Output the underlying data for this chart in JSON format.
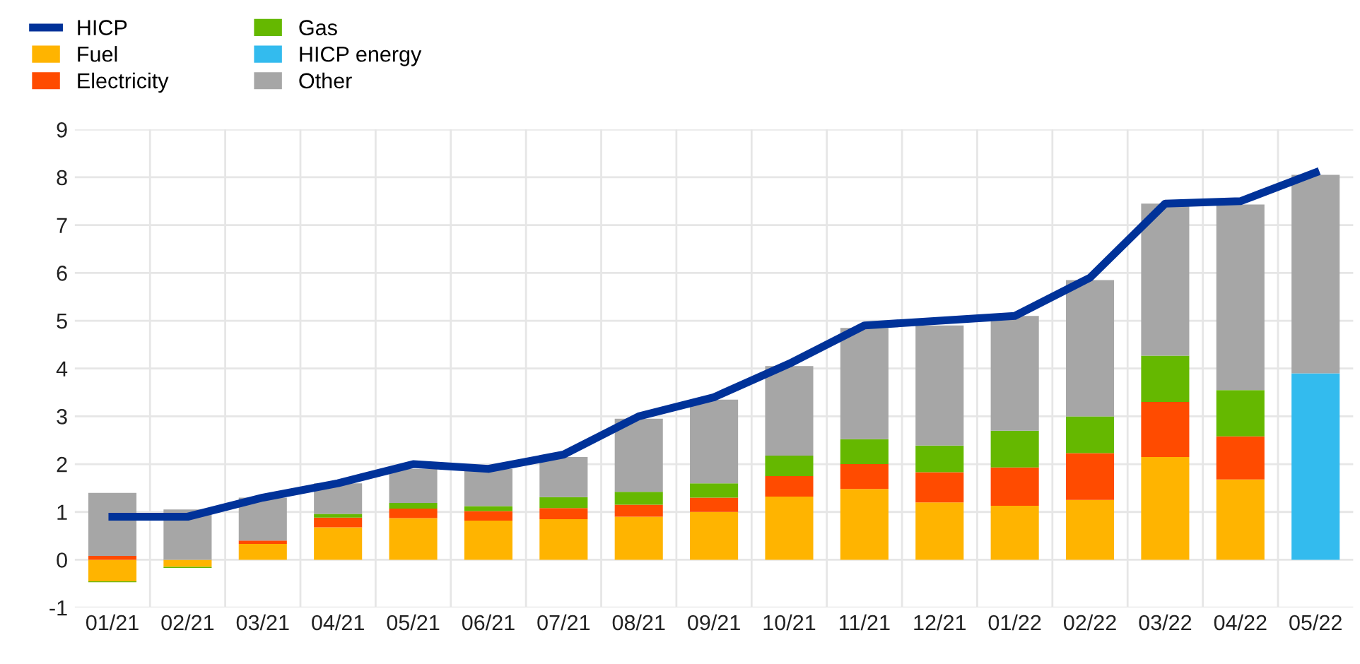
{
  "chart_data": {
    "type": "bar",
    "stacked": true,
    "categories": [
      "01/21",
      "02/21",
      "03/21",
      "04/21",
      "05/21",
      "06/21",
      "07/21",
      "08/21",
      "09/21",
      "10/21",
      "11/21",
      "12/21",
      "01/22",
      "02/22",
      "03/22",
      "04/22",
      "05/22"
    ],
    "series": [
      {
        "name": "HICP",
        "type": "line",
        "color": "#003299",
        "values": [
          0.9,
          0.9,
          1.3,
          1.6,
          2.0,
          1.9,
          2.2,
          3.0,
          3.4,
          4.1,
          4.9,
          5.0,
          5.1,
          5.9,
          7.45,
          7.5,
          8.1
        ]
      },
      {
        "name": "Fuel",
        "color": "#ffb400",
        "values": [
          -0.45,
          -0.15,
          0.33,
          0.68,
          0.87,
          0.82,
          0.85,
          0.9,
          1.0,
          1.32,
          1.48,
          1.2,
          1.13,
          1.25,
          2.15,
          1.68,
          null
        ]
      },
      {
        "name": "Electricity",
        "color": "#ff4b00",
        "values": [
          0.08,
          0.0,
          0.07,
          0.2,
          0.2,
          0.2,
          0.23,
          0.25,
          0.3,
          0.43,
          0.52,
          0.63,
          0.8,
          0.98,
          1.15,
          0.9,
          null
        ]
      },
      {
        "name": "Gas",
        "color": "#65b800",
        "values": [
          -0.02,
          -0.02,
          0.0,
          0.08,
          0.12,
          0.1,
          0.23,
          0.27,
          0.3,
          0.43,
          0.52,
          0.56,
          0.77,
          0.77,
          0.97,
          0.97,
          null
        ]
      },
      {
        "name": "HICP energy",
        "color": "#33bbee",
        "values": [
          null,
          null,
          null,
          null,
          null,
          null,
          null,
          null,
          null,
          null,
          null,
          null,
          null,
          null,
          null,
          null,
          3.9
        ]
      },
      {
        "name": "Other",
        "color": "#a6a6a6",
        "values": [
          1.32,
          1.05,
          0.9,
          0.64,
          0.71,
          0.78,
          0.84,
          1.53,
          1.75,
          1.87,
          2.33,
          2.51,
          2.4,
          2.85,
          3.18,
          3.88,
          4.15
        ]
      }
    ],
    "ylim": [
      -1,
      9
    ],
    "yticks": [
      -1,
      0,
      1,
      2,
      3,
      4,
      5,
      6,
      7,
      8,
      9
    ],
    "grid": true,
    "legend": "top left",
    "marker": "none",
    "line_style": "solid"
  }
}
